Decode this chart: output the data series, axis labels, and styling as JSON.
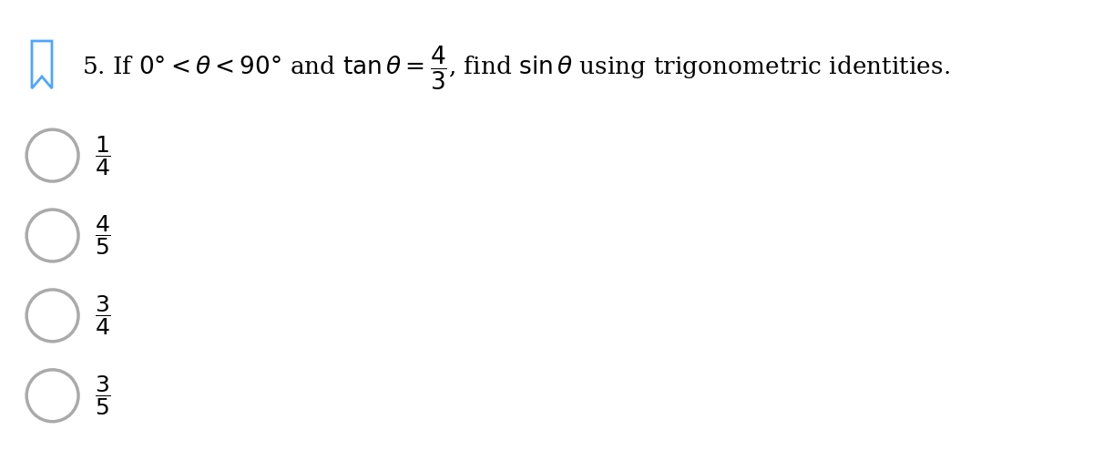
{
  "background_color": "#ffffff",
  "bookmark_color": "#4da6ff",
  "options": [
    {
      "num": "1",
      "den": "4"
    },
    {
      "num": "4",
      "den": "5"
    },
    {
      "num": "3",
      "den": "4"
    },
    {
      "num": "3",
      "den": "5"
    }
  ],
  "circle_color": "#aaaaaa",
  "circle_lw": 2.5,
  "question_fontsize": 19,
  "option_fontsize": 18
}
